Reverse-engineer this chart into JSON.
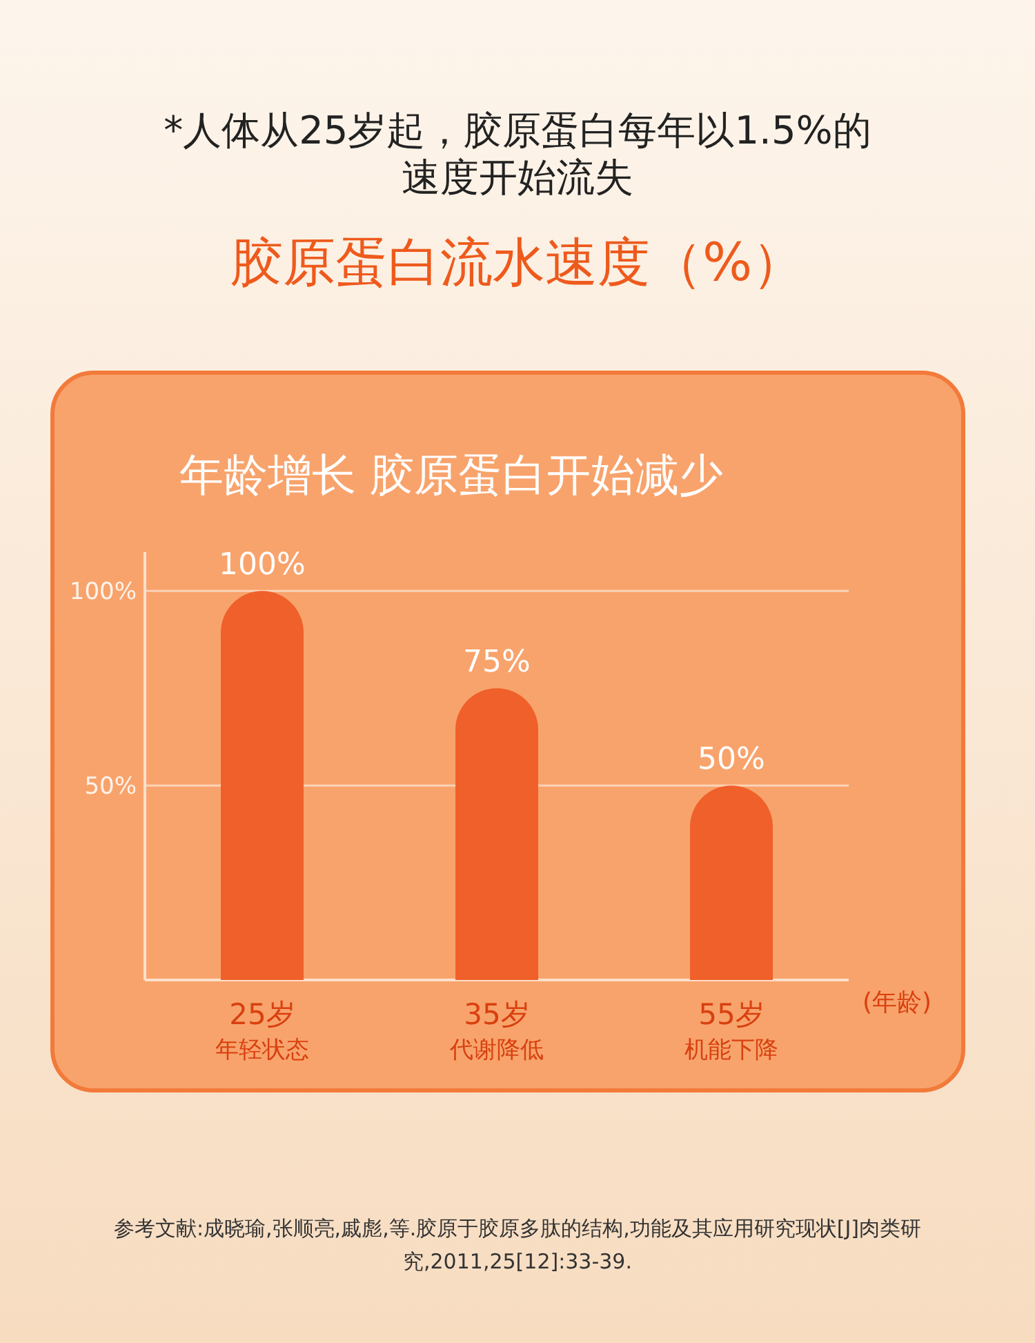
{
  "chart_data": {
    "type": "bar",
    "subtitle": "*人体从25岁起，胶原蛋白每年以1.5%的速度开始流失",
    "title": "胶原蛋白流水速度（%）",
    "annotations": [
      "年龄增长 胶原蛋白开始减少",
      "参考文献:成晓瑜,张顺亮,戚彪,等.胶原于胶原多肽的结构,功能及其应用研究现状[J]肉类研究,2011,25[12]:33-39."
    ],
    "categories": [
      "25岁年轻状态",
      "35岁代谢降低",
      "55岁机能下降"
    ],
    "values": [
      100,
      75,
      50
    ],
    "value_labels": [
      "100%",
      "75%",
      "50%"
    ],
    "color": "#f0602a",
    "xlabel": "(年龄)",
    "ylim": [
      0,
      110
    ],
    "yticks": [
      {
        "value": 100,
        "label": "100%"
      },
      {
        "value": 50,
        "label": "50%"
      }
    ],
    "grid": "y"
  }
}
